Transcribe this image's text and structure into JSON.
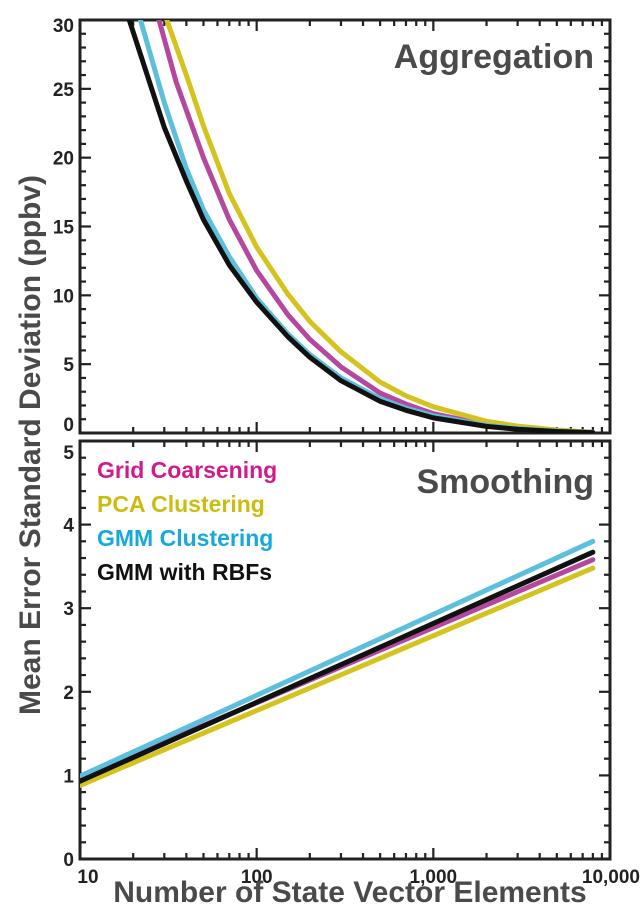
{
  "chart_data": {
    "type": "line",
    "xlabel": "Number of State Vector Elements",
    "ylabel": "Mean Error Standard Deviation (ppbv)",
    "x_scale": "log",
    "xlim": [
      10,
      10000
    ],
    "x_ticks": [
      10,
      100,
      1000,
      10000
    ],
    "x_tick_labels": [
      "10",
      "100",
      "1,000",
      "10,000"
    ],
    "panels": [
      {
        "title": "Aggregation",
        "ylim": [
          0,
          30
        ],
        "y_ticks": [
          0,
          5,
          10,
          15,
          20,
          25,
          30
        ],
        "y_tick_labels": [
          "0",
          "5",
          "10",
          "15",
          "20",
          "25",
          "30"
        ],
        "series": [
          {
            "name": "Grid Coarsening",
            "color": "#b5489e",
            "x": [
              28,
              35,
              50,
              70,
              100,
              150,
              200,
              300,
              500,
              700,
              1000,
              2000,
              3000,
              5000,
              8000
            ],
            "y": [
              30,
              25.5,
              20,
              15.5,
              11.8,
              8.6,
              6.8,
              4.8,
              2.9,
              2.1,
              1.4,
              0.6,
              0.35,
              0.15,
              0.05
            ]
          },
          {
            "name": "PCA Clustering",
            "color": "#d4c31f",
            "x": [
              31,
              40,
              50,
              70,
              100,
              150,
              200,
              300,
              500,
              700,
              1000,
              2000,
              3000,
              5000,
              8000
            ],
            "y": [
              30,
              26,
              22.3,
              17.4,
              13.5,
              10.1,
              8.1,
              5.9,
              3.7,
              2.7,
              1.9,
              0.85,
              0.5,
              0.22,
              0.05
            ]
          },
          {
            "name": "GMM Clustering",
            "color": "#5cbfdc",
            "x": [
              22,
              30,
              40,
              50,
              70,
              100,
              150,
              200,
              300,
              500,
              700,
              1000,
              2000,
              3000,
              5000,
              8000
            ],
            "y": [
              30,
              24,
              19.2,
              16.2,
              12.8,
              9.8,
              7.2,
              5.7,
              4.0,
              2.5,
              1.8,
              1.25,
              0.55,
              0.32,
              0.14,
              0.04
            ]
          },
          {
            "name": "GMM with RBFs",
            "color": "#111111",
            "x": [
              19,
              30,
              40,
              50,
              70,
              100,
              150,
              200,
              300,
              500,
              700,
              1000,
              2000,
              3000,
              5000,
              8000
            ],
            "y": [
              30,
              22.2,
              18.3,
              15.5,
              12.2,
              9.5,
              7.0,
              5.5,
              3.8,
              2.3,
              1.65,
              1.1,
              0.48,
              0.27,
              0.11,
              0.03
            ]
          }
        ]
      },
      {
        "title": "Smoothing",
        "ylim": [
          0,
          5
        ],
        "y_ticks": [
          0,
          1,
          2,
          3,
          4,
          5
        ],
        "y_tick_labels": [
          "0",
          "1",
          "2",
          "3",
          "4",
          "5"
        ],
        "series": [
          {
            "name": "Grid Coarsening",
            "color": "#b5489e",
            "x": [
              10,
              8000
            ],
            "y": [
              0.97,
              3.58
            ]
          },
          {
            "name": "PCA Clustering",
            "color": "#d4c31f",
            "x": [
              10,
              8000
            ],
            "y": [
              0.88,
              3.48
            ]
          },
          {
            "name": "GMM Clustering",
            "color": "#5cbfdc",
            "x": [
              10,
              8000
            ],
            "y": [
              0.99,
              3.8
            ]
          },
          {
            "name": "GMM with RBFs",
            "color": "#111111",
            "x": [
              10,
              8000
            ],
            "y": [
              0.93,
              3.67
            ]
          }
        ]
      }
    ],
    "legend": {
      "placement": "top-left of lower panel",
      "entries": [
        {
          "label": "Grid Coarsening",
          "color": "#d11b8a"
        },
        {
          "label": "PCA Clustering",
          "color": "#cbbd0f"
        },
        {
          "label": "GMM Clustering",
          "color": "#18a9dc"
        },
        {
          "label": "GMM with RBFs",
          "color": "#111111"
        }
      ]
    }
  }
}
